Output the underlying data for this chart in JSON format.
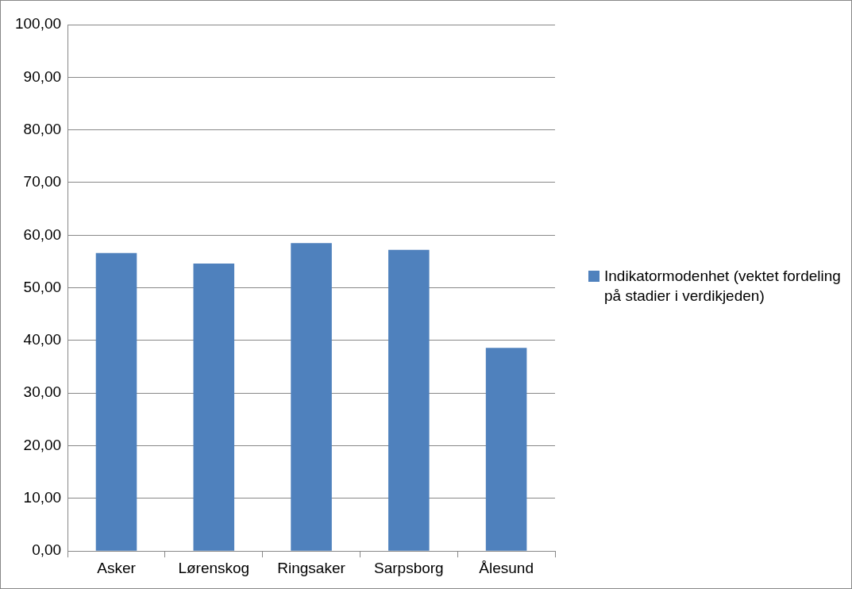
{
  "chart_data": {
    "type": "bar",
    "categories": [
      "Asker",
      "Lørenskog",
      "Ringsaker",
      "Sarpsborg",
      "Ålesund"
    ],
    "series": [
      {
        "name": "Indikatormodenhet (vektet fordeling på stadier i verdikjeden)",
        "color": "#4f81bd",
        "values": [
          56.6,
          54.6,
          58.5,
          57.2,
          38.6
        ]
      }
    ],
    "ylim": [
      0,
      100
    ],
    "yticks": [
      {
        "value": 0,
        "label": "0,00"
      },
      {
        "value": 10,
        "label": "10,00"
      },
      {
        "value": 20,
        "label": "20,00"
      },
      {
        "value": 30,
        "label": "30,00"
      },
      {
        "value": 40,
        "label": "40,00"
      },
      {
        "value": 50,
        "label": "50,00"
      },
      {
        "value": 60,
        "label": "60,00"
      },
      {
        "value": 70,
        "label": "70,00"
      },
      {
        "value": 80,
        "label": "80,00"
      },
      {
        "value": 90,
        "label": "90,00"
      },
      {
        "value": 100,
        "label": "100,00"
      }
    ],
    "grid": "y",
    "legend": "right"
  }
}
